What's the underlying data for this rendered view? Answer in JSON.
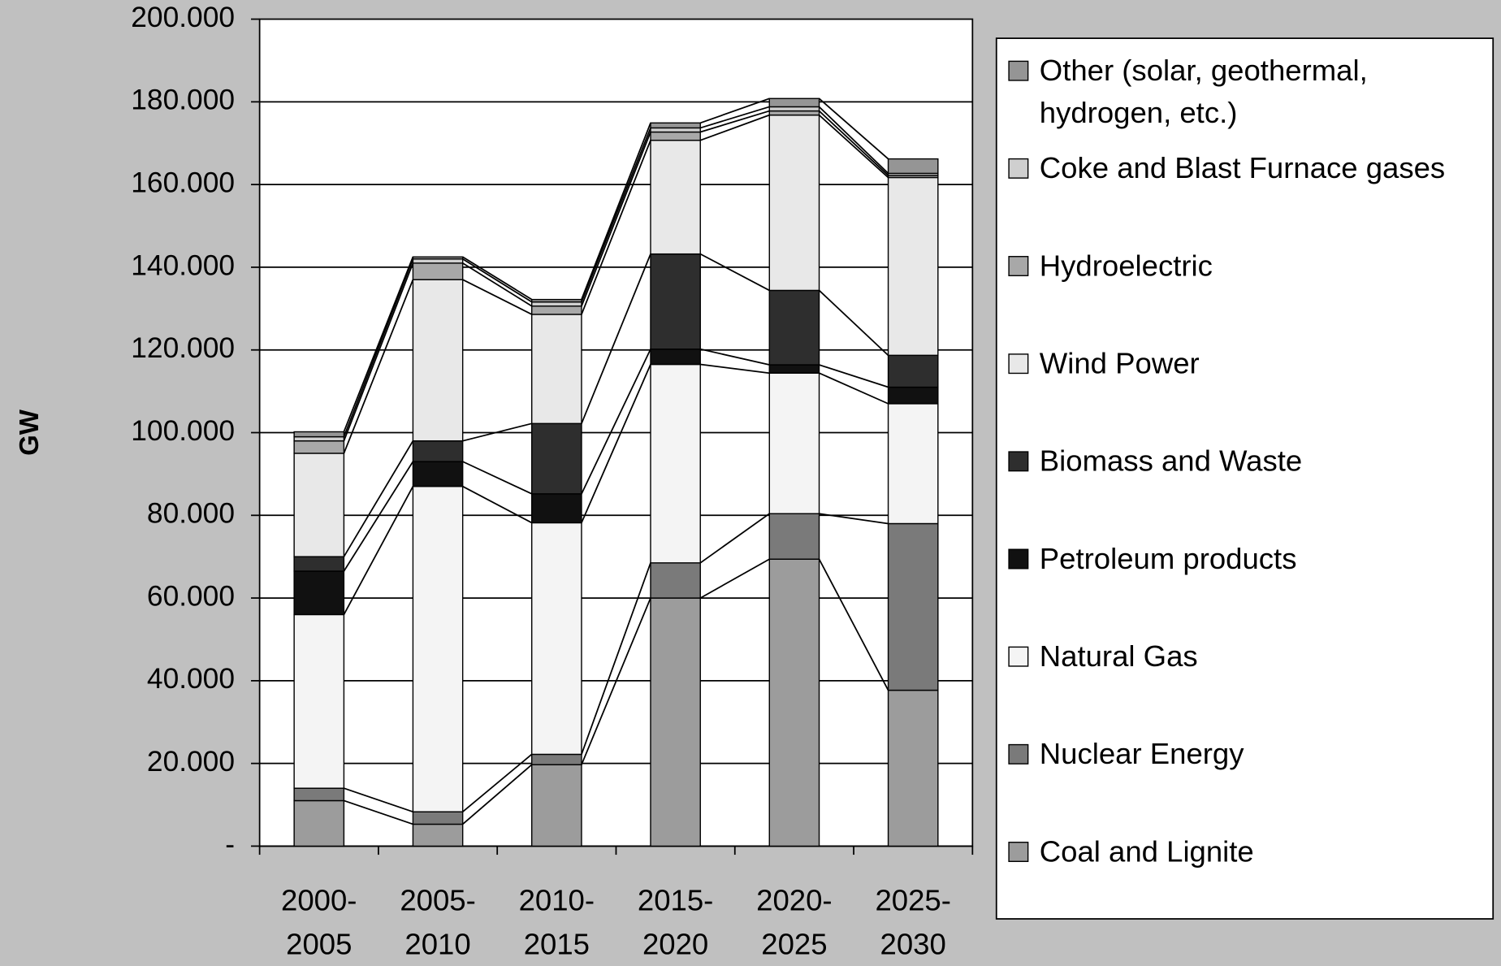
{
  "chart_data": {
    "type": "stacked_bar",
    "ylabel": "GW",
    "categories": [
      "2000-2005",
      "2005-2010",
      "2010-2015",
      "2015-2020",
      "2020-2025",
      "2025-2030"
    ],
    "series": [
      {
        "name": "Coal and Lignite",
        "color": "#9c9c9c",
        "values": [
          11,
          5.3,
          19.7,
          60,
          69.4,
          37.7
        ]
      },
      {
        "name": "Nuclear Energy",
        "color": "#7a7a7a",
        "values": [
          3,
          3,
          2.5,
          8.5,
          11,
          40.3
        ]
      },
      {
        "name": "Natural Gas",
        "color": "#f4f4f4",
        "values": [
          42,
          78.7,
          56,
          48,
          34,
          29
        ]
      },
      {
        "name": "Petroleum products",
        "color": "#111111",
        "values": [
          10.5,
          6,
          7,
          3.7,
          2,
          4
        ]
      },
      {
        "name": "Biomass and Waste",
        "color": "#2e2e2e",
        "values": [
          3.5,
          5,
          17,
          23,
          18,
          7.7
        ]
      },
      {
        "name": "Wind Power",
        "color": "#e8e8e8",
        "values": [
          25,
          39,
          26.4,
          27.5,
          42.4,
          43
        ]
      },
      {
        "name": "Hydroelectric",
        "color": "#a8a8a8",
        "values": [
          3,
          4,
          2,
          2,
          1,
          0.5
        ]
      },
      {
        "name": "Coke and Blast Furnace gases",
        "color": "#cfcfcf",
        "values": [
          1,
          1,
          1,
          1,
          1,
          0.5
        ]
      },
      {
        "name": "Other (solar, geothermal, hydrogen, etc.)",
        "color": "#959595",
        "values": [
          1.2,
          0.5,
          0.6,
          1.2,
          2,
          3.5
        ]
      }
    ],
    "ylim": [
      0,
      200
    ],
    "yticks": [
      {
        "value": 0,
        "label": "-"
      },
      {
        "value": 20,
        "label": "20.000"
      },
      {
        "value": 40,
        "label": "40.000"
      },
      {
        "value": 60,
        "label": "60.000"
      },
      {
        "value": 80,
        "label": "80.000"
      },
      {
        "value": 100,
        "label": "100.000"
      },
      {
        "value": 120,
        "label": "120.000"
      },
      {
        "value": 140,
        "label": "140.000"
      },
      {
        "value": 160,
        "label": "160.000"
      },
      {
        "value": 180,
        "label": "180.000"
      },
      {
        "value": 200,
        "label": "200.000"
      }
    ],
    "grid": true,
    "legend": "right"
  }
}
